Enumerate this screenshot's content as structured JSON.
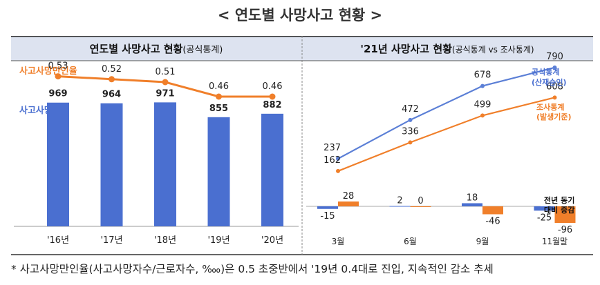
{
  "page_title": "< 연도별 사망사고 현황 >",
  "footnote": "* 사고사망만인율(사고사망자수/근로자수, ‱)은 0.5 초중반에서 '19년 0.4대로 진입, 지속적인 감소 추세",
  "chart_data": [
    {
      "type": "bar",
      "title": "연도별 사망사고 현황",
      "title_suffix": "(공식통계)",
      "categories": [
        "'16년",
        "'17년",
        "'18년",
        "'19년",
        "'20년"
      ],
      "series": [
        {
          "name": "사고사망자수",
          "type": "bar",
          "color": "#4a6fd0",
          "values": [
            969,
            964,
            971,
            855,
            882
          ]
        },
        {
          "name": "사고사망만인율",
          "type": "line",
          "color": "#f07f2a",
          "values": [
            0.53,
            0.52,
            0.51,
            0.46,
            0.46
          ]
        }
      ]
    },
    {
      "type": "line",
      "title": "'21년 사망사고 현황",
      "title_suffix": "(공식통계 vs 조사통계)",
      "categories": [
        "3월",
        "6월",
        "9월",
        "11월말"
      ],
      "series": [
        {
          "name": "공식통계",
          "name_sub": "(산재승인)",
          "color": "#5b7fd6",
          "values": [
            237,
            472,
            678,
            790
          ]
        },
        {
          "name": "조사통계",
          "name_sub": "(발생기준)",
          "color": "#f07f2a",
          "values": [
            162,
            336,
            499,
            608
          ]
        }
      ],
      "change_chart": {
        "type": "bar",
        "label_line1": "전년 동기",
        "label_line2": "대비 증감",
        "series": [
          {
            "name": "공식통계",
            "color": "#4a6fd0",
            "values": [
              -15,
              2,
              18,
              -25
            ]
          },
          {
            "name": "조사통계",
            "color": "#f07f2a",
            "values": [
              28,
              0,
              -46,
              -96
            ]
          }
        ]
      }
    }
  ]
}
